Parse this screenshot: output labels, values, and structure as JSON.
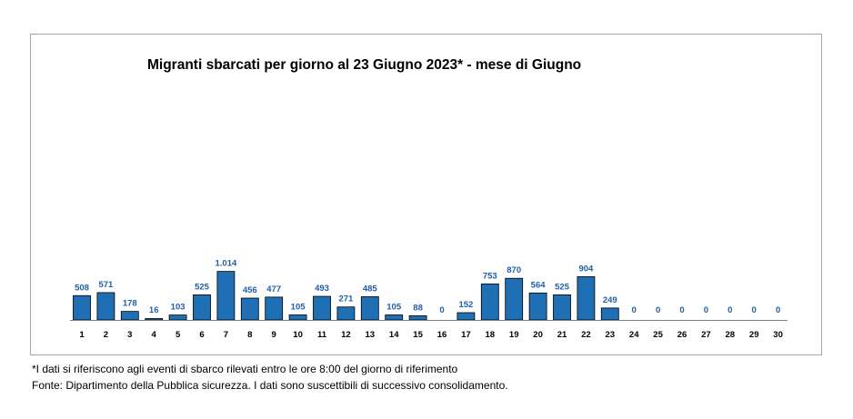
{
  "chart_data": {
    "type": "bar",
    "title": "Migranti sbarcati per giorno al 23 Giugno 2023* - mese di Giugno",
    "xlabel": "",
    "ylabel": "",
    "categories": [
      "1",
      "2",
      "3",
      "4",
      "5",
      "6",
      "7",
      "8",
      "9",
      "10",
      "11",
      "12",
      "13",
      "14",
      "15",
      "16",
      "17",
      "18",
      "19",
      "20",
      "21",
      "22",
      "23",
      "24",
      "25",
      "26",
      "27",
      "28",
      "29",
      "30"
    ],
    "values": [
      508,
      571,
      178,
      16,
      103,
      525,
      1014,
      456,
      477,
      105,
      493,
      271,
      485,
      105,
      88,
      0,
      152,
      753,
      870,
      564,
      525,
      904,
      249,
      0,
      0,
      0,
      0,
      0,
      0,
      0
    ],
    "value_labels": [
      "508",
      "571",
      "178",
      "16",
      "103",
      "525",
      "1.014",
      "456",
      "477",
      "105",
      "493",
      "271",
      "485",
      "105",
      "88",
      "0",
      "152",
      "753",
      "870",
      "564",
      "525",
      "904",
      "249",
      "0",
      "0",
      "0",
      "0",
      "0",
      "0",
      "0"
    ],
    "ylim": [
      0,
      5700
    ],
    "grid": false,
    "legend": "none",
    "colors": {
      "bar": "#1f6fb4",
      "bar_edge": "#000000",
      "value_label": "#1f5fa6",
      "axis": "#7f7f7f"
    }
  },
  "footnotes": {
    "note1": "*I dati si riferiscono agli eventi di sbarco rilevati entro le ore 8:00 del giorno di riferimento",
    "note2": "Fonte: Dipartimento della Pubblica sicurezza. I dati sono suscettibili di successivo consolidamento."
  }
}
